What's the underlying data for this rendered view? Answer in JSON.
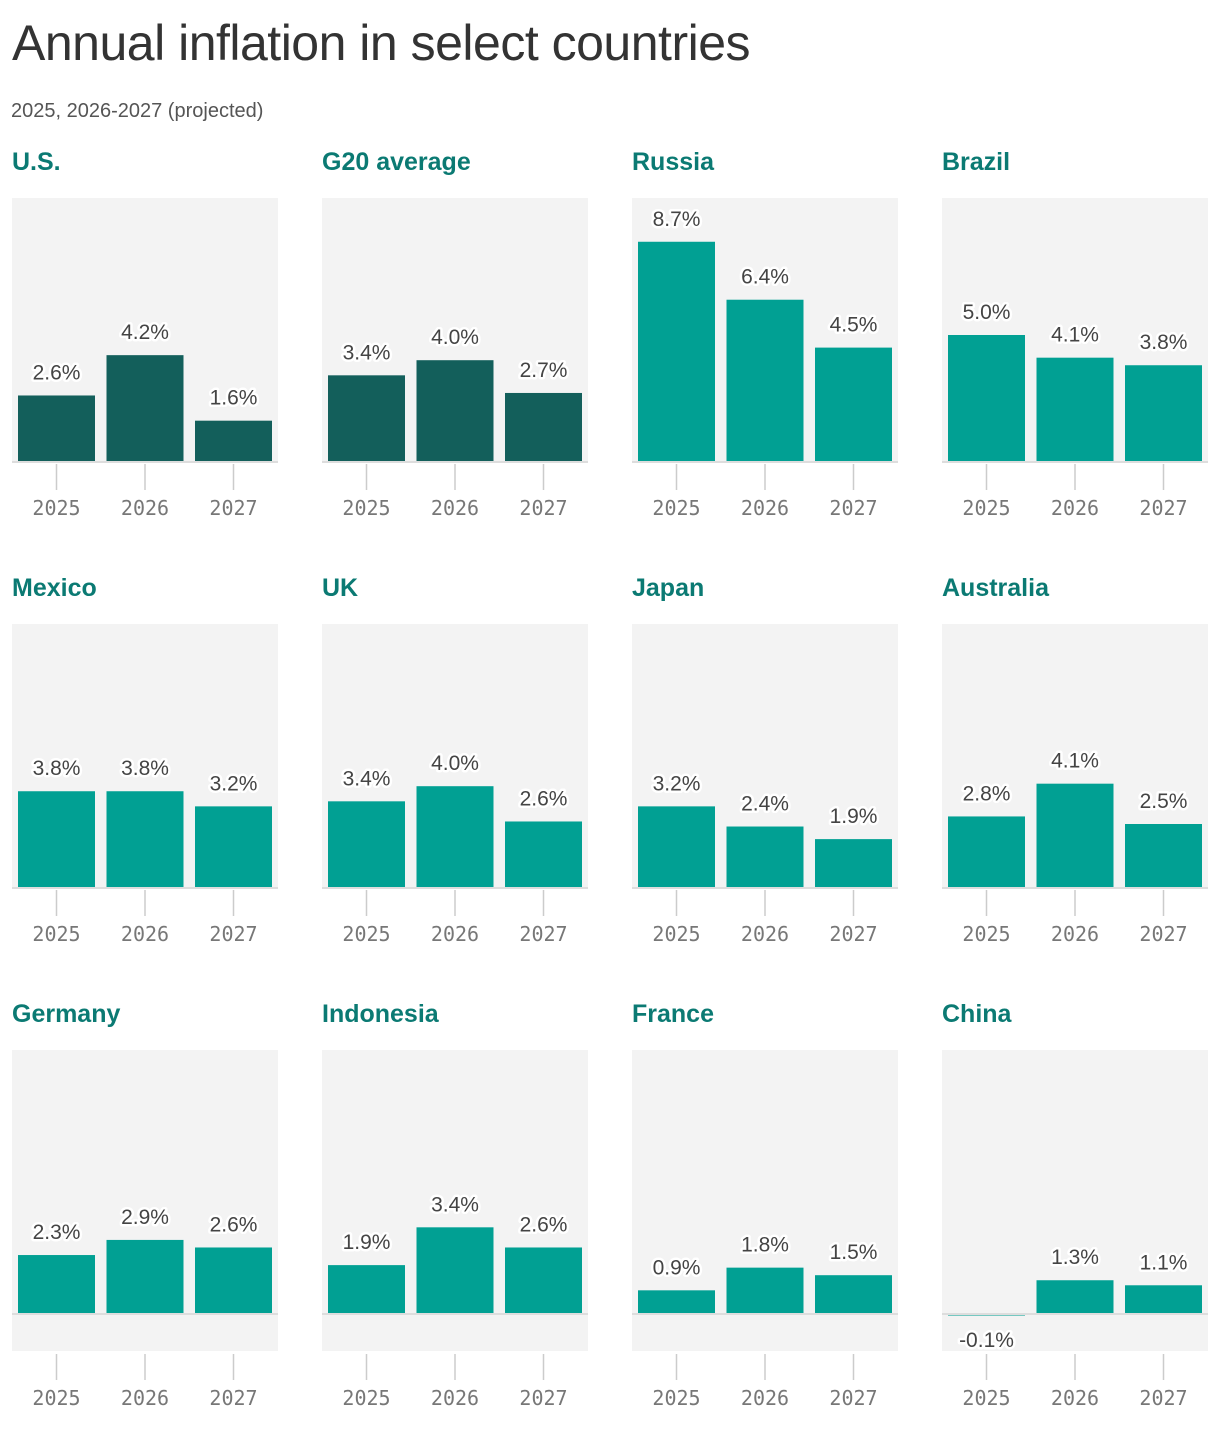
{
  "title": "Annual inflation in select countries",
  "subtitle": "2025, 2026-2027 (projected)",
  "colors": {
    "highlight": "#135f5b",
    "default": "#01a093",
    "panel_background": "#f3f3f3",
    "title_color": "#0b7a73"
  },
  "chart_data": [
    {
      "type": "bar",
      "title": "U.S.",
      "highlight": true,
      "categories": [
        "2025",
        "2026",
        "2027"
      ],
      "values": [
        2.6,
        4.2,
        1.6
      ],
      "labels": [
        "2.6%",
        "4.2%",
        "1.6%"
      ]
    },
    {
      "type": "bar",
      "title": "G20 average",
      "highlight": true,
      "categories": [
        "2025",
        "2026",
        "2027"
      ],
      "values": [
        3.4,
        4.0,
        2.7
      ],
      "labels": [
        "3.4%",
        "4.0%",
        "2.7%"
      ]
    },
    {
      "type": "bar",
      "title": "Russia",
      "highlight": false,
      "categories": [
        "2025",
        "2026",
        "2027"
      ],
      "values": [
        8.7,
        6.4,
        4.5
      ],
      "labels": [
        "8.7%",
        "6.4%",
        "4.5%"
      ]
    },
    {
      "type": "bar",
      "title": "Brazil",
      "highlight": false,
      "categories": [
        "2025",
        "2026",
        "2027"
      ],
      "values": [
        5.0,
        4.1,
        3.8
      ],
      "labels": [
        "5.0%",
        "4.1%",
        "3.8%"
      ]
    },
    {
      "type": "bar",
      "title": "Mexico",
      "highlight": false,
      "categories": [
        "2025",
        "2026",
        "2027"
      ],
      "values": [
        3.8,
        3.8,
        3.2
      ],
      "labels": [
        "3.8%",
        "3.8%",
        "3.2%"
      ]
    },
    {
      "type": "bar",
      "title": "UK",
      "highlight": false,
      "categories": [
        "2025",
        "2026",
        "2027"
      ],
      "values": [
        3.4,
        4.0,
        2.6
      ],
      "labels": [
        "3.4%",
        "4.0%",
        "2.6%"
      ]
    },
    {
      "type": "bar",
      "title": "Japan",
      "highlight": false,
      "categories": [
        "2025",
        "2026",
        "2027"
      ],
      "values": [
        3.2,
        2.4,
        1.9
      ],
      "labels": [
        "3.2%",
        "2.4%",
        "1.9%"
      ]
    },
    {
      "type": "bar",
      "title": "Australia",
      "highlight": false,
      "categories": [
        "2025",
        "2026",
        "2027"
      ],
      "values": [
        2.8,
        4.1,
        2.5
      ],
      "labels": [
        "2.8%",
        "4.1%",
        "2.5%"
      ]
    },
    {
      "type": "bar",
      "title": "Germany",
      "highlight": false,
      "categories": [
        "2025",
        "2026",
        "2027"
      ],
      "values": [
        2.3,
        2.9,
        2.6
      ],
      "labels": [
        "2.3%",
        "2.9%",
        "2.6%"
      ]
    },
    {
      "type": "bar",
      "title": "Indonesia",
      "highlight": false,
      "categories": [
        "2025",
        "2026",
        "2027"
      ],
      "values": [
        1.9,
        3.4,
        2.6
      ],
      "labels": [
        "1.9%",
        "3.4%",
        "2.6%"
      ]
    },
    {
      "type": "bar",
      "title": "France",
      "highlight": false,
      "categories": [
        "2025",
        "2026",
        "2027"
      ],
      "values": [
        0.9,
        1.8,
        1.5
      ],
      "labels": [
        "0.9%",
        "1.8%",
        "1.5%"
      ]
    },
    {
      "type": "bar",
      "title": "China",
      "highlight": false,
      "categories": [
        "2025",
        "2026",
        "2027"
      ],
      "values": [
        -0.1,
        1.3,
        1.1
      ],
      "labels": [
        "-0.1%",
        "1.3%",
        "1.1%"
      ]
    }
  ]
}
